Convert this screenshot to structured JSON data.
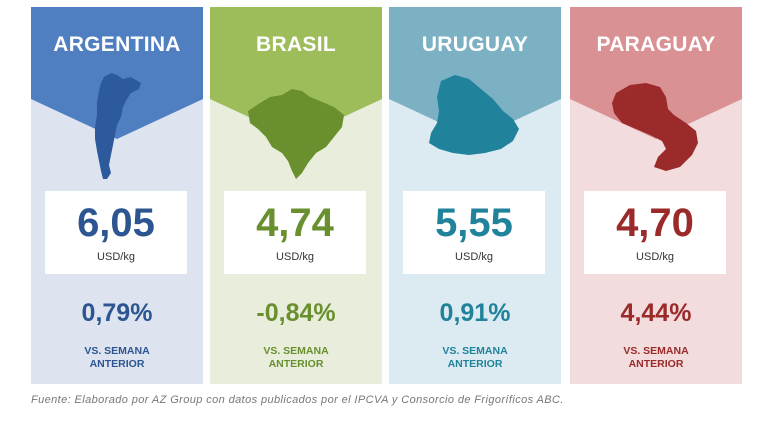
{
  "cards": [
    {
      "country": "ARGENTINA",
      "price": "6,05",
      "unit": "USD/kg",
      "change": "0,79%",
      "vs_line1": "VS. SEMANA",
      "vs_line2": "ANTERIOR",
      "colors": {
        "header": "#4f7fc1",
        "body": "#dde4ef",
        "text": "#2c5592",
        "map": "#2d5a9c"
      }
    },
    {
      "country": "BRASIL",
      "price": "4,74",
      "unit": "USD/kg",
      "change": "-0,84%",
      "vs_line1": "VS. SEMANA",
      "vs_line2": "ANTERIOR",
      "colors": {
        "header": "#9dbd5a",
        "body": "#e8eedb",
        "text": "#6a8f2e",
        "map": "#6a8f2e"
      }
    },
    {
      "country": "URUGUAY",
      "price": "5,55",
      "unit": "USD/kg",
      "change": "0,91%",
      "vs_line1": "VS. SEMANA",
      "vs_line2": "ANTERIOR",
      "colors": {
        "header": "#7cb0c3",
        "body": "#dcebf2",
        "text": "#20829b",
        "map": "#20829b"
      }
    },
    {
      "country": "PARAGUAY",
      "price": "4,70",
      "unit": "USD/kg",
      "change": "4,44%",
      "vs_line1": "VS. SEMANA",
      "vs_line2": "ANTERIOR",
      "colors": {
        "header": "#da9194",
        "body": "#f2dcdd",
        "text": "#9b2a2a",
        "map": "#9b2a2a"
      }
    }
  ],
  "footer": {
    "source": "Fuente: Elaborado por AZ Group con datos publicados por el IPCVA y Consorcio de Frigoríficos ABC."
  }
}
